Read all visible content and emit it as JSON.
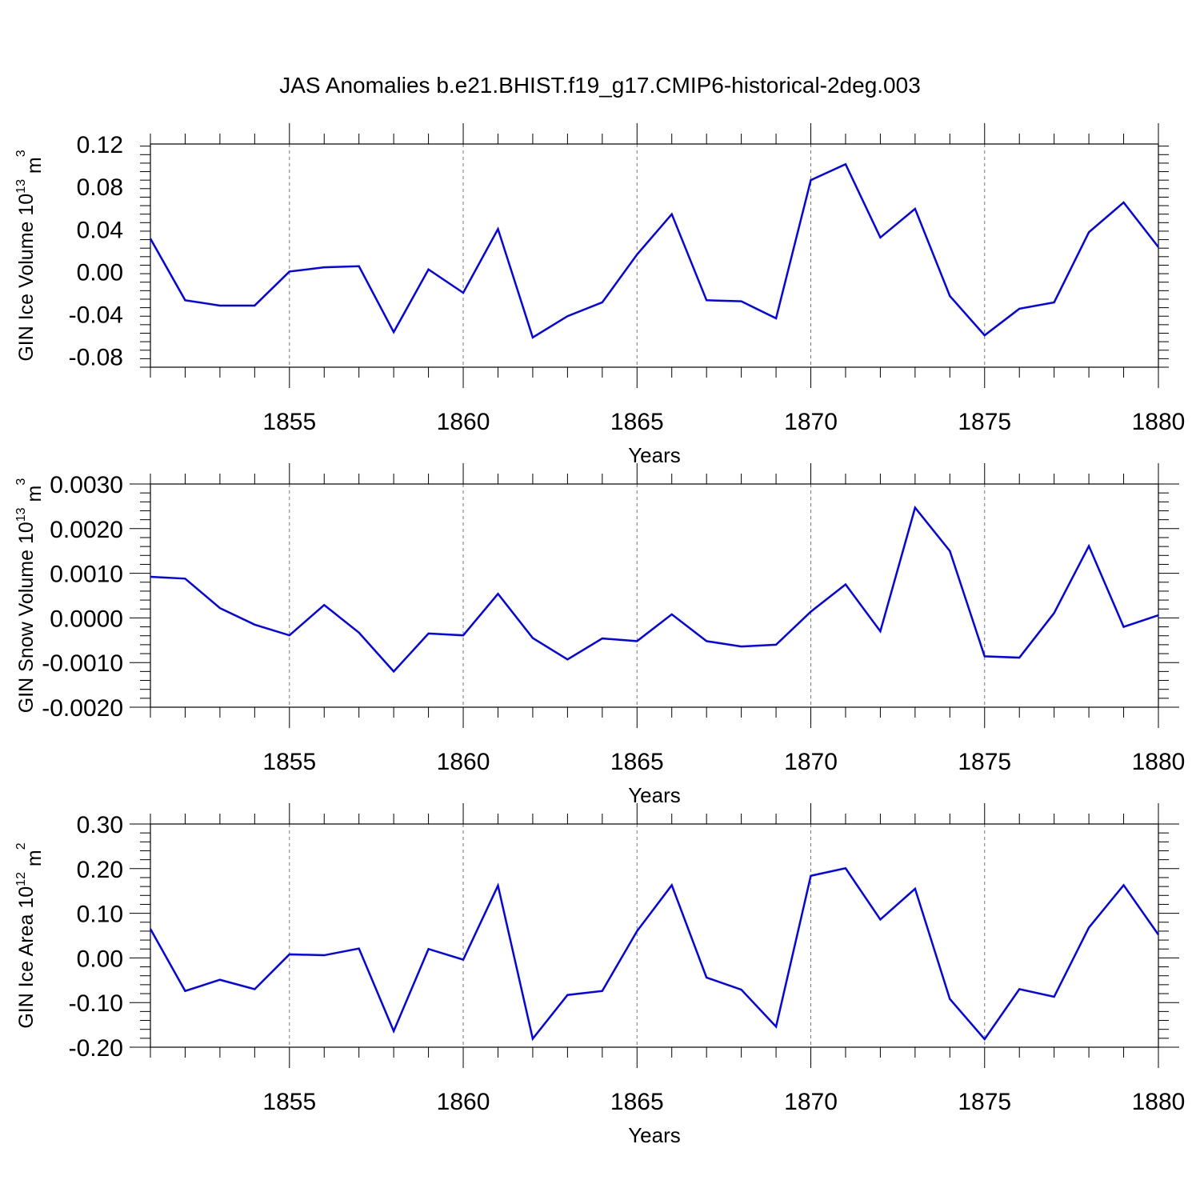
{
  "title": "JAS Anomalies b.e21.BHIST.f19_g17.CMIP6-historical-2deg.003",
  "line_color": "#0000ff",
  "grid": "dashed vertical lines at major x ticks",
  "chart_data": [
    {
      "type": "line",
      "ylabel": "GIN Ice Volume 10",
      "ylabel_exponent": "13",
      "ylabel_unit": "m",
      "ylabel_unit_exponent": "3",
      "xlabel": "Years",
      "xlim": [
        1851,
        1880
      ],
      "ylim": [
        -0.09,
        0.12
      ],
      "yticks": [
        "0.12",
        "0.08",
        "0.04",
        "0.00",
        "-0.04",
        "-0.08"
      ],
      "xticks": [
        "1855",
        "1860",
        "1865",
        "1870",
        "1875",
        "1880"
      ],
      "x": [
        1851,
        1852,
        1853,
        1854,
        1855,
        1856,
        1857,
        1858,
        1859,
        1860,
        1861,
        1862,
        1863,
        1864,
        1865,
        1866,
        1867,
        1868,
        1869,
        1870,
        1871,
        1872,
        1873,
        1874,
        1875,
        1876,
        1877,
        1878,
        1879,
        1880
      ],
      "values": [
        0.031,
        -0.027,
        -0.032,
        -0.032,
        0.0,
        0.004,
        0.005,
        -0.057,
        0.002,
        -0.02,
        0.04,
        -0.062,
        -0.042,
        -0.029,
        0.016,
        0.054,
        -0.027,
        -0.028,
        -0.044,
        0.086,
        0.101,
        0.032,
        0.059,
        -0.023,
        -0.06,
        -0.035,
        -0.029,
        0.037,
        0.065,
        0.023
      ]
    },
    {
      "type": "line",
      "ylabel": "GIN Snow Volume 10",
      "ylabel_exponent": "13",
      "ylabel_unit": "m",
      "ylabel_unit_exponent": "3",
      "xlabel": "Years",
      "xlim": [
        1851,
        1880
      ],
      "ylim": [
        -0.002,
        0.003
      ],
      "yticks": [
        "0.0030",
        "0.0020",
        "0.0010",
        "0.0000",
        "-0.0010",
        "-0.0020"
      ],
      "xticks": [
        "1855",
        "1860",
        "1865",
        "1870",
        "1875",
        "1880"
      ],
      "x": [
        1851,
        1852,
        1853,
        1854,
        1855,
        1856,
        1857,
        1858,
        1859,
        1860,
        1861,
        1862,
        1863,
        1864,
        1865,
        1866,
        1867,
        1868,
        1869,
        1870,
        1871,
        1872,
        1873,
        1874,
        1875,
        1876,
        1877,
        1878,
        1879,
        1880
      ],
      "values": [
        0.00092,
        0.00088,
        0.00022,
        -0.00015,
        -0.00039,
        0.00029,
        -0.00033,
        -0.0012,
        -0.00035,
        -0.00039,
        0.00054,
        -0.00045,
        -0.00093,
        -0.00046,
        -0.00052,
        8e-05,
        -0.00052,
        -0.00064,
        -0.0006,
        0.00014,
        0.00075,
        -0.0003,
        0.00247,
        0.0015,
        -0.00086,
        -0.00089,
        0.00011,
        0.00161,
        -0.0002,
        6e-05
      ]
    },
    {
      "type": "line",
      "ylabel": "GIN Ice Area 10",
      "ylabel_exponent": "12",
      "ylabel_unit": "m",
      "ylabel_unit_exponent": "2",
      "xlabel": "Years",
      "xlim": [
        1851,
        1880
      ],
      "ylim": [
        -0.2,
        0.3
      ],
      "yticks": [
        "0.30",
        "0.20",
        "0.10",
        "0.00",
        "-0.10",
        "-0.20"
      ],
      "xticks": [
        "1855",
        "1860",
        "1865",
        "1870",
        "1875",
        "1880"
      ],
      "x": [
        1851,
        1852,
        1853,
        1854,
        1855,
        1856,
        1857,
        1858,
        1859,
        1860,
        1861,
        1862,
        1863,
        1864,
        1865,
        1866,
        1867,
        1868,
        1869,
        1870,
        1871,
        1872,
        1873,
        1874,
        1875,
        1876,
        1877,
        1878,
        1879,
        1880
      ],
      "values": [
        0.065,
        -0.074,
        -0.049,
        -0.07,
        0.008,
        0.006,
        0.021,
        -0.164,
        0.02,
        -0.004,
        0.162,
        -0.181,
        -0.083,
        -0.074,
        0.06,
        0.163,
        -0.044,
        -0.071,
        -0.154,
        0.184,
        0.201,
        0.086,
        0.155,
        -0.092,
        -0.182,
        -0.07,
        -0.087,
        0.068,
        0.163,
        0.052
      ]
    }
  ]
}
